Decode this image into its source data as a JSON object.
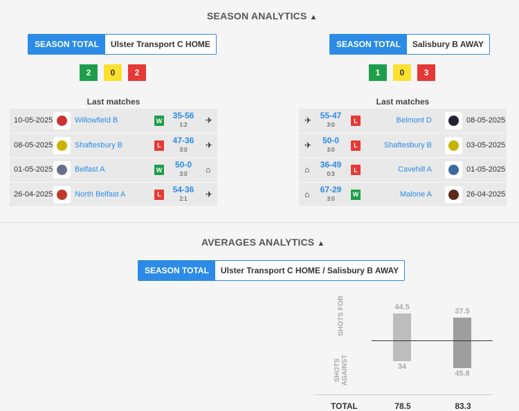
{
  "season": {
    "title": "SEASON ANALYTICS",
    "caret_icon": "chevron-up-icon",
    "home": {
      "tab_active": "SEASON TOTAL",
      "tab_team": "Ulster Transport C HOME",
      "form": [
        {
          "value": "2",
          "color": "#1e9e4a"
        },
        {
          "value": "0",
          "color": "#fbe12e"
        },
        {
          "value": "2",
          "color": "#e53935"
        }
      ],
      "last_matches_label": "Last matches",
      "matches": [
        {
          "date": "10-05-2025",
          "team": "Willowfield B",
          "result": "W",
          "score": "35-56",
          "sub": "1:2",
          "venue": "plane-icon",
          "logo": "#c33"
        },
        {
          "date": "08-05-2025",
          "team": "Shaftesbury B",
          "result": "L",
          "score": "47-36",
          "sub": "3:0",
          "venue": "plane-icon",
          "logo": "#c8b400"
        },
        {
          "date": "01-05-2025",
          "team": "Belfast A",
          "result": "W",
          "score": "50-0",
          "sub": "3:0",
          "venue": "home-icon",
          "logo": "#6a6f8a"
        },
        {
          "date": "26-04-2025",
          "team": "North Belfast A",
          "result": "L",
          "score": "54-36",
          "sub": "2:1",
          "venue": "plane-icon",
          "logo": "#c0392b"
        }
      ]
    },
    "away": {
      "tab_active": "SEASON TOTAL",
      "tab_team": "Salisbury B AWAY",
      "form": [
        {
          "value": "1",
          "color": "#1e9e4a"
        },
        {
          "value": "0",
          "color": "#fbe12e"
        },
        {
          "value": "3",
          "color": "#e53935"
        }
      ],
      "last_matches_label": "Last matches",
      "matches": [
        {
          "date": "08-05-2025",
          "team": "Belmont D",
          "result": "L",
          "score": "55-47",
          "sub": "3:0",
          "venue": "plane-icon",
          "logo": "#223"
        },
        {
          "date": "03-05-2025",
          "team": "Shaftesbury B",
          "result": "L",
          "score": "50-0",
          "sub": "3:0",
          "venue": "plane-icon",
          "logo": "#c8b400"
        },
        {
          "date": "01-05-2025",
          "team": "Cavehill A",
          "result": "L",
          "score": "36-49",
          "sub": "0:3",
          "venue": "home-icon",
          "logo": "#3a6aa0"
        },
        {
          "date": "26-04-2025",
          "team": "Malone A",
          "result": "W",
          "score": "67-29",
          "sub": "3:0",
          "venue": "home-icon",
          "logo": "#5a2a1a"
        }
      ]
    }
  },
  "colors": {
    "W": "#1e9e4a",
    "L": "#e53935",
    "accent": "#2b8be6"
  },
  "averages": {
    "title": "AVERAGES ANALYTICS",
    "tab_active": "SEASON TOTAL",
    "tab_team": "Ulster Transport C HOME / Salisbury B AWAY"
  },
  "chart_data": {
    "type": "bar",
    "label_for": "SHOTS FOR",
    "label_against": "SHOTS AGAINST",
    "series": [
      {
        "shots_for": 44.5,
        "shots_against": 34,
        "total": 78.5,
        "color": "#bdbdbd"
      },
      {
        "shots_for": 37.5,
        "shots_against": 45.8,
        "total": 83.3,
        "color": "#9e9e9e"
      }
    ],
    "total_label": "TOTAL"
  }
}
